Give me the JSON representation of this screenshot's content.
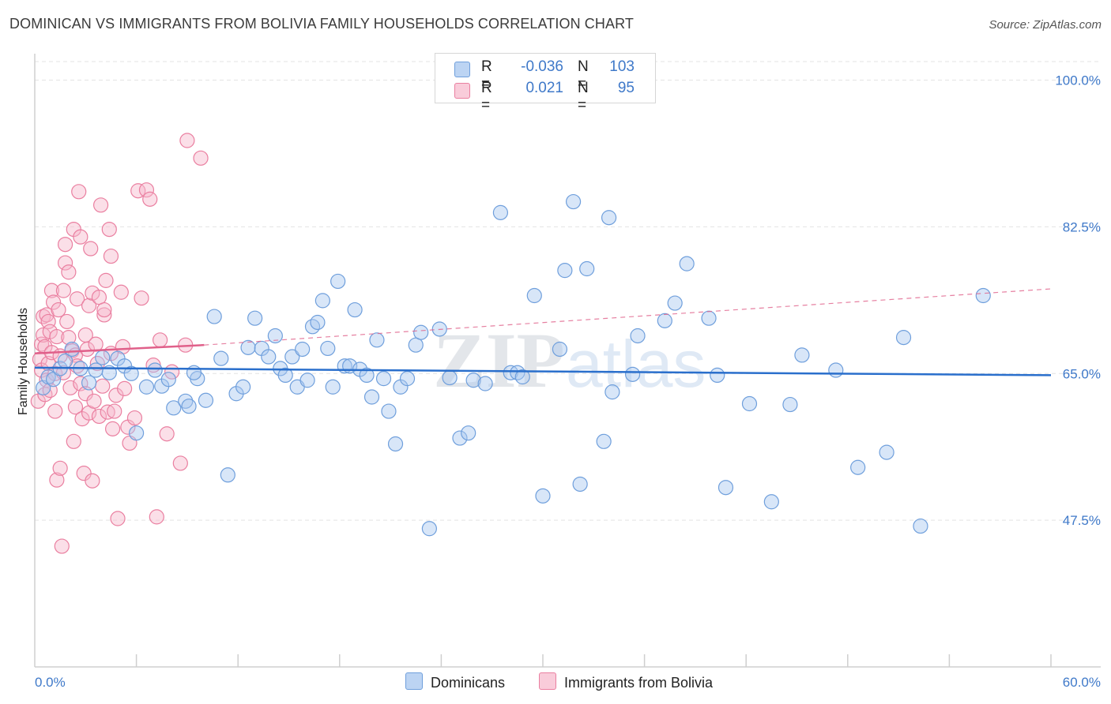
{
  "title": "DOMINICAN VS IMMIGRANTS FROM BOLIVIA FAMILY HOUSEHOLDS CORRELATION CHART",
  "source": "Source: ZipAtlas.com",
  "watermark": {
    "zip": "ZIP",
    "atlas": "atlas"
  },
  "colors": {
    "blue_fill": "#a9c8ef",
    "blue_stroke": "#6f9fdc",
    "blue_line": "#2a6fcc",
    "pink_fill": "#f6b8cb",
    "pink_stroke": "#ea7fa0",
    "pink_line": "#e0608a",
    "tick_text": "#3f79c9",
    "grid": "#e3e3e3"
  },
  "legend": {
    "rows": [
      {
        "r_label": "R =",
        "r_value": "-0.036",
        "n_label": "N =",
        "n_value": "103"
      },
      {
        "r_label": "R =",
        "r_value": "0.021",
        "n_label": "N =",
        "n_value": "95"
      }
    ]
  },
  "bottom_legend": {
    "series1": "Dominicans",
    "series2": "Immigrants from Bolivia"
  },
  "chart_data": {
    "type": "scatter",
    "title": "DOMINICAN VS IMMIGRANTS FROM BOLIVIA FAMILY HOUSEHOLDS CORRELATION CHART",
    "xlabel": "",
    "ylabel": "Family Households",
    "xlim": [
      0,
      60
    ],
    "ylim": [
      30,
      102.5
    ],
    "x_tick_labels": [
      "0.0%",
      "60.0%"
    ],
    "y_ticks": [
      47.5,
      65.0,
      82.5,
      100.0
    ],
    "y_tick_labels": [
      "47.5%",
      "65.0%",
      "82.5%",
      "100.0%"
    ],
    "grid": "horizontal dashed",
    "legend_position": "top-center",
    "series": [
      {
        "name": "Dominicans",
        "color": "#a9c8ef",
        "trend": {
          "x": [
            0,
            60
          ],
          "y": [
            65.7,
            64.8
          ]
        },
        "points": [
          [
            0.5,
            63.3
          ],
          [
            0.8,
            64.6
          ],
          [
            1.1,
            64.3
          ],
          [
            1.5,
            65.6
          ],
          [
            1.8,
            66.5
          ],
          [
            2.2,
            67.9
          ],
          [
            2.7,
            65.6
          ],
          [
            3.2,
            63.9
          ],
          [
            3.6,
            65.4
          ],
          [
            4.0,
            66.9
          ],
          [
            4.4,
            65.1
          ],
          [
            4.9,
            66.8
          ],
          [
            5.3,
            65.9
          ],
          [
            5.7,
            65.0
          ],
          [
            6.0,
            57.9
          ],
          [
            6.6,
            63.4
          ],
          [
            7.1,
            65.4
          ],
          [
            7.5,
            63.5
          ],
          [
            7.9,
            64.3
          ],
          [
            8.2,
            60.9
          ],
          [
            8.9,
            61.7
          ],
          [
            9.1,
            61.1
          ],
          [
            9.6,
            64.4
          ],
          [
            10.1,
            61.8
          ],
          [
            9.4,
            65.1
          ],
          [
            10.6,
            71.8
          ],
          [
            11.0,
            66.8
          ],
          [
            11.4,
            52.9
          ],
          [
            11.9,
            62.6
          ],
          [
            12.3,
            63.4
          ],
          [
            12.6,
            68.1
          ],
          [
            13.0,
            71.6
          ],
          [
            13.4,
            68.0
          ],
          [
            13.8,
            67.0
          ],
          [
            14.2,
            69.5
          ],
          [
            14.5,
            65.6
          ],
          [
            14.8,
            64.8
          ],
          [
            15.2,
            67.0
          ],
          [
            15.5,
            63.4
          ],
          [
            15.8,
            67.9
          ],
          [
            16.1,
            64.2
          ],
          [
            16.4,
            70.6
          ],
          [
            16.7,
            71.1
          ],
          [
            17.0,
            73.7
          ],
          [
            17.3,
            68.0
          ],
          [
            17.6,
            63.4
          ],
          [
            17.9,
            76.0
          ],
          [
            18.3,
            65.9
          ],
          [
            18.6,
            65.9
          ],
          [
            18.9,
            72.6
          ],
          [
            19.2,
            65.5
          ],
          [
            19.6,
            64.8
          ],
          [
            19.9,
            62.2
          ],
          [
            20.2,
            69.0
          ],
          [
            20.6,
            64.4
          ],
          [
            20.9,
            60.5
          ],
          [
            21.3,
            56.6
          ],
          [
            21.6,
            63.4
          ],
          [
            22.0,
            64.4
          ],
          [
            22.5,
            68.4
          ],
          [
            22.8,
            69.9
          ],
          [
            23.3,
            46.5
          ],
          [
            23.9,
            70.3
          ],
          [
            24.5,
            64.5
          ],
          [
            25.1,
            57.3
          ],
          [
            25.6,
            57.9
          ],
          [
            25.9,
            64.2
          ],
          [
            26.6,
            63.8
          ],
          [
            27.5,
            84.2
          ],
          [
            28.1,
            65.1
          ],
          [
            28.5,
            65.1
          ],
          [
            28.8,
            64.6
          ],
          [
            29.5,
            74.3
          ],
          [
            30.0,
            50.4
          ],
          [
            31.0,
            67.9
          ],
          [
            31.3,
            77.3
          ],
          [
            31.8,
            85.5
          ],
          [
            32.2,
            51.8
          ],
          [
            32.6,
            77.5
          ],
          [
            33.6,
            56.9
          ],
          [
            33.9,
            83.6
          ],
          [
            34.1,
            62.8
          ],
          [
            35.3,
            64.9
          ],
          [
            35.6,
            69.5
          ],
          [
            37.2,
            71.3
          ],
          [
            37.8,
            73.4
          ],
          [
            38.5,
            78.1
          ],
          [
            39.8,
            71.6
          ],
          [
            40.3,
            64.8
          ],
          [
            40.8,
            51.4
          ],
          [
            42.2,
            61.4
          ],
          [
            43.5,
            49.7
          ],
          [
            44.6,
            61.3
          ],
          [
            45.3,
            67.2
          ],
          [
            47.3,
            65.4
          ],
          [
            48.6,
            53.8
          ],
          [
            50.3,
            55.6
          ],
          [
            51.3,
            69.3
          ],
          [
            52.3,
            46.8
          ],
          [
            56.0,
            74.3
          ]
        ]
      },
      {
        "name": "Immigrants from Bolivia",
        "color": "#f6b8cb",
        "trend": {
          "x": [
            0,
            10
          ],
          "y": [
            67.4,
            68.4
          ]
        },
        "trend_extended": {
          "x": [
            10,
            60
          ],
          "y": [
            68.4,
            75.1
          ]
        },
        "points": [
          [
            0.2,
            61.7
          ],
          [
            0.3,
            66.7
          ],
          [
            0.4,
            65.4
          ],
          [
            0.4,
            68.5
          ],
          [
            0.5,
            69.6
          ],
          [
            0.5,
            71.8
          ],
          [
            0.6,
            62.5
          ],
          [
            0.6,
            68.2
          ],
          [
            0.7,
            64.2
          ],
          [
            0.7,
            72.0
          ],
          [
            0.8,
            66.2
          ],
          [
            0.8,
            71.2
          ],
          [
            0.9,
            70.0
          ],
          [
            0.9,
            63.0
          ],
          [
            1.0,
            74.9
          ],
          [
            1.0,
            67.5
          ],
          [
            1.1,
            73.5
          ],
          [
            1.2,
            65.0
          ],
          [
            1.2,
            60.5
          ],
          [
            1.3,
            52.3
          ],
          [
            1.3,
            69.4
          ],
          [
            1.4,
            72.6
          ],
          [
            1.5,
            67.1
          ],
          [
            1.5,
            53.7
          ],
          [
            1.6,
            44.4
          ],
          [
            1.7,
            74.9
          ],
          [
            1.7,
            65.1
          ],
          [
            1.8,
            78.2
          ],
          [
            1.8,
            80.4
          ],
          [
            1.9,
            71.2
          ],
          [
            2.0,
            77.1
          ],
          [
            2.0,
            69.3
          ],
          [
            2.1,
            63.3
          ],
          [
            2.2,
            67.7
          ],
          [
            2.3,
            56.9
          ],
          [
            2.3,
            82.2
          ],
          [
            2.4,
            67.2
          ],
          [
            2.4,
            61.0
          ],
          [
            2.5,
            65.9
          ],
          [
            2.5,
            73.9
          ],
          [
            2.6,
            86.7
          ],
          [
            2.7,
            81.3
          ],
          [
            2.7,
            63.8
          ],
          [
            2.8,
            59.6
          ],
          [
            2.9,
            53.1
          ],
          [
            3.0,
            62.6
          ],
          [
            3.0,
            69.6
          ],
          [
            3.1,
            67.9
          ],
          [
            3.2,
            73.1
          ],
          [
            3.2,
            60.3
          ],
          [
            3.3,
            79.9
          ],
          [
            3.4,
            74.6
          ],
          [
            3.4,
            52.2
          ],
          [
            3.5,
            61.7
          ],
          [
            3.6,
            68.5
          ],
          [
            3.7,
            66.2
          ],
          [
            3.8,
            59.9
          ],
          [
            3.8,
            74.1
          ],
          [
            3.9,
            85.1
          ],
          [
            4.0,
            63.5
          ],
          [
            4.1,
            72.0
          ],
          [
            4.1,
            72.6
          ],
          [
            4.2,
            76.1
          ],
          [
            4.3,
            60.4
          ],
          [
            4.4,
            82.2
          ],
          [
            4.5,
            67.4
          ],
          [
            4.5,
            79.0
          ],
          [
            4.6,
            58.4
          ],
          [
            4.7,
            60.5
          ],
          [
            4.8,
            62.4
          ],
          [
            4.9,
            47.7
          ],
          [
            5.1,
            74.7
          ],
          [
            5.2,
            68.2
          ],
          [
            5.3,
            63.2
          ],
          [
            5.5,
            58.6
          ],
          [
            5.6,
            56.7
          ],
          [
            5.9,
            59.7
          ],
          [
            6.1,
            86.8
          ],
          [
            6.3,
            74.0
          ],
          [
            6.6,
            86.9
          ],
          [
            6.8,
            85.8
          ],
          [
            7.0,
            66.0
          ],
          [
            7.2,
            47.9
          ],
          [
            7.4,
            69.0
          ],
          [
            7.8,
            57.8
          ],
          [
            8.1,
            65.2
          ],
          [
            8.6,
            54.3
          ],
          [
            9.0,
            92.8
          ],
          [
            9.8,
            90.7
          ],
          [
            8.9,
            68.4
          ]
        ]
      }
    ]
  }
}
